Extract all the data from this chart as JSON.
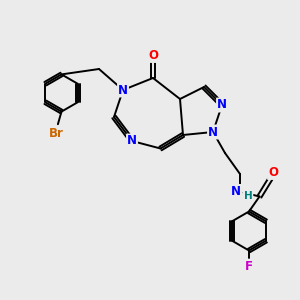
{
  "bg_color": "#ebebeb",
  "bond_color": "#000000",
  "bond_width": 1.4,
  "colors": {
    "N": "#0000ff",
    "O": "#ff0000",
    "Br": "#cc6600",
    "F": "#cc00cc",
    "C": "#000000",
    "H": "#008080"
  },
  "font_size_atom": 8.5,
  "font_size_small": 7.5,
  "xlim": [
    0,
    10
  ],
  "ylim": [
    0,
    10
  ]
}
